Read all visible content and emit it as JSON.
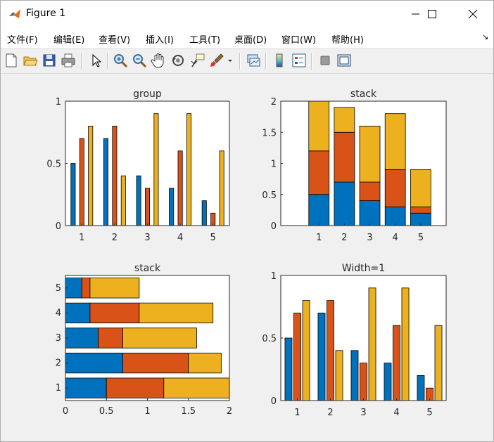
{
  "window": {
    "title": "Figure 1",
    "controls": {
      "minimize": "—",
      "maximize": "☐",
      "close": "✕"
    }
  },
  "menu": [
    {
      "label": "文件(F)"
    },
    {
      "label": "编辑(E)"
    },
    {
      "label": "查看(V)"
    },
    {
      "label": "插入(I)"
    },
    {
      "label": "工具(T)"
    },
    {
      "label": "桌面(D)"
    },
    {
      "label": "窗口(W)"
    },
    {
      "label": "帮助(H)"
    }
  ],
  "dock_glyph": "↘",
  "toolbar": [
    {
      "icon": "new-figure-icon"
    },
    {
      "icon": "open-file-icon"
    },
    {
      "icon": "save-icon"
    },
    {
      "icon": "print-icon"
    },
    {
      "icon": "select-arrow-icon"
    },
    {
      "icon": "zoom-in-icon"
    },
    {
      "icon": "zoom-out-icon"
    },
    {
      "icon": "pan-hand-icon"
    },
    {
      "icon": "rotate-3d-icon"
    },
    {
      "icon": "data-cursor-icon"
    },
    {
      "icon": "brush-icon"
    },
    {
      "icon": "link-plot-icon"
    },
    {
      "icon": "colorbar-icon"
    },
    {
      "icon": "legend-icon"
    },
    {
      "icon": "hide-plot-tools-icon"
    },
    {
      "icon": "show-plot-tools-icon"
    }
  ],
  "colors": {
    "series1": "#0072bd",
    "series2": "#d95319",
    "series3": "#edb120"
  },
  "chart_data": [
    {
      "type": "bar",
      "mode": "grouped",
      "title": "group",
      "categories": [
        "1",
        "2",
        "3",
        "4",
        "5"
      ],
      "series": [
        {
          "values": [
            0.5,
            0.7,
            0.4,
            0.3,
            0.2
          ]
        },
        {
          "values": [
            0.7,
            0.8,
            0.3,
            0.6,
            0.1
          ]
        },
        {
          "values": [
            0.8,
            0.4,
            0.9,
            0.9,
            0.6
          ]
        }
      ],
      "ylim": [
        0,
        1
      ],
      "yticks": [
        "0",
        "0.5",
        "1"
      ],
      "grid": false
    },
    {
      "type": "bar",
      "mode": "stacked",
      "title": "stack",
      "categories": [
        "1",
        "2",
        "3",
        "4",
        "5"
      ],
      "series": [
        {
          "values": [
            0.5,
            0.7,
            0.4,
            0.3,
            0.2
          ]
        },
        {
          "values": [
            0.7,
            0.8,
            0.3,
            0.6,
            0.1
          ]
        },
        {
          "values": [
            0.8,
            0.4,
            0.9,
            0.9,
            0.6
          ]
        }
      ],
      "ylim": [
        0,
        2
      ],
      "yticks": [
        "0",
        "0.5",
        "1",
        "1.5",
        "2"
      ],
      "grid": false
    },
    {
      "type": "bar",
      "mode": "stacked-horizontal",
      "title": "stack",
      "categories": [
        "1",
        "2",
        "3",
        "4",
        "5"
      ],
      "series": [
        {
          "values": [
            0.5,
            0.7,
            0.4,
            0.3,
            0.2
          ]
        },
        {
          "values": [
            0.7,
            0.8,
            0.3,
            0.6,
            0.1
          ]
        },
        {
          "values": [
            0.8,
            0.4,
            0.9,
            0.9,
            0.6
          ]
        }
      ],
      "xlim": [
        0,
        2
      ],
      "xticks": [
        "0",
        "0.5",
        "1",
        "1.5",
        "2"
      ],
      "grid": false
    },
    {
      "type": "bar",
      "mode": "grouped",
      "title": "Width=1",
      "categories": [
        "1",
        "2",
        "3",
        "4",
        "5"
      ],
      "series": [
        {
          "values": [
            0.5,
            0.7,
            0.4,
            0.3,
            0.2
          ]
        },
        {
          "values": [
            0.7,
            0.8,
            0.3,
            0.6,
            0.1
          ]
        },
        {
          "values": [
            0.8,
            0.4,
            0.9,
            0.9,
            0.6
          ]
        }
      ],
      "ylim": [
        0,
        1
      ],
      "yticks": [
        "0",
        "0.5",
        "1"
      ],
      "grid": false
    }
  ]
}
